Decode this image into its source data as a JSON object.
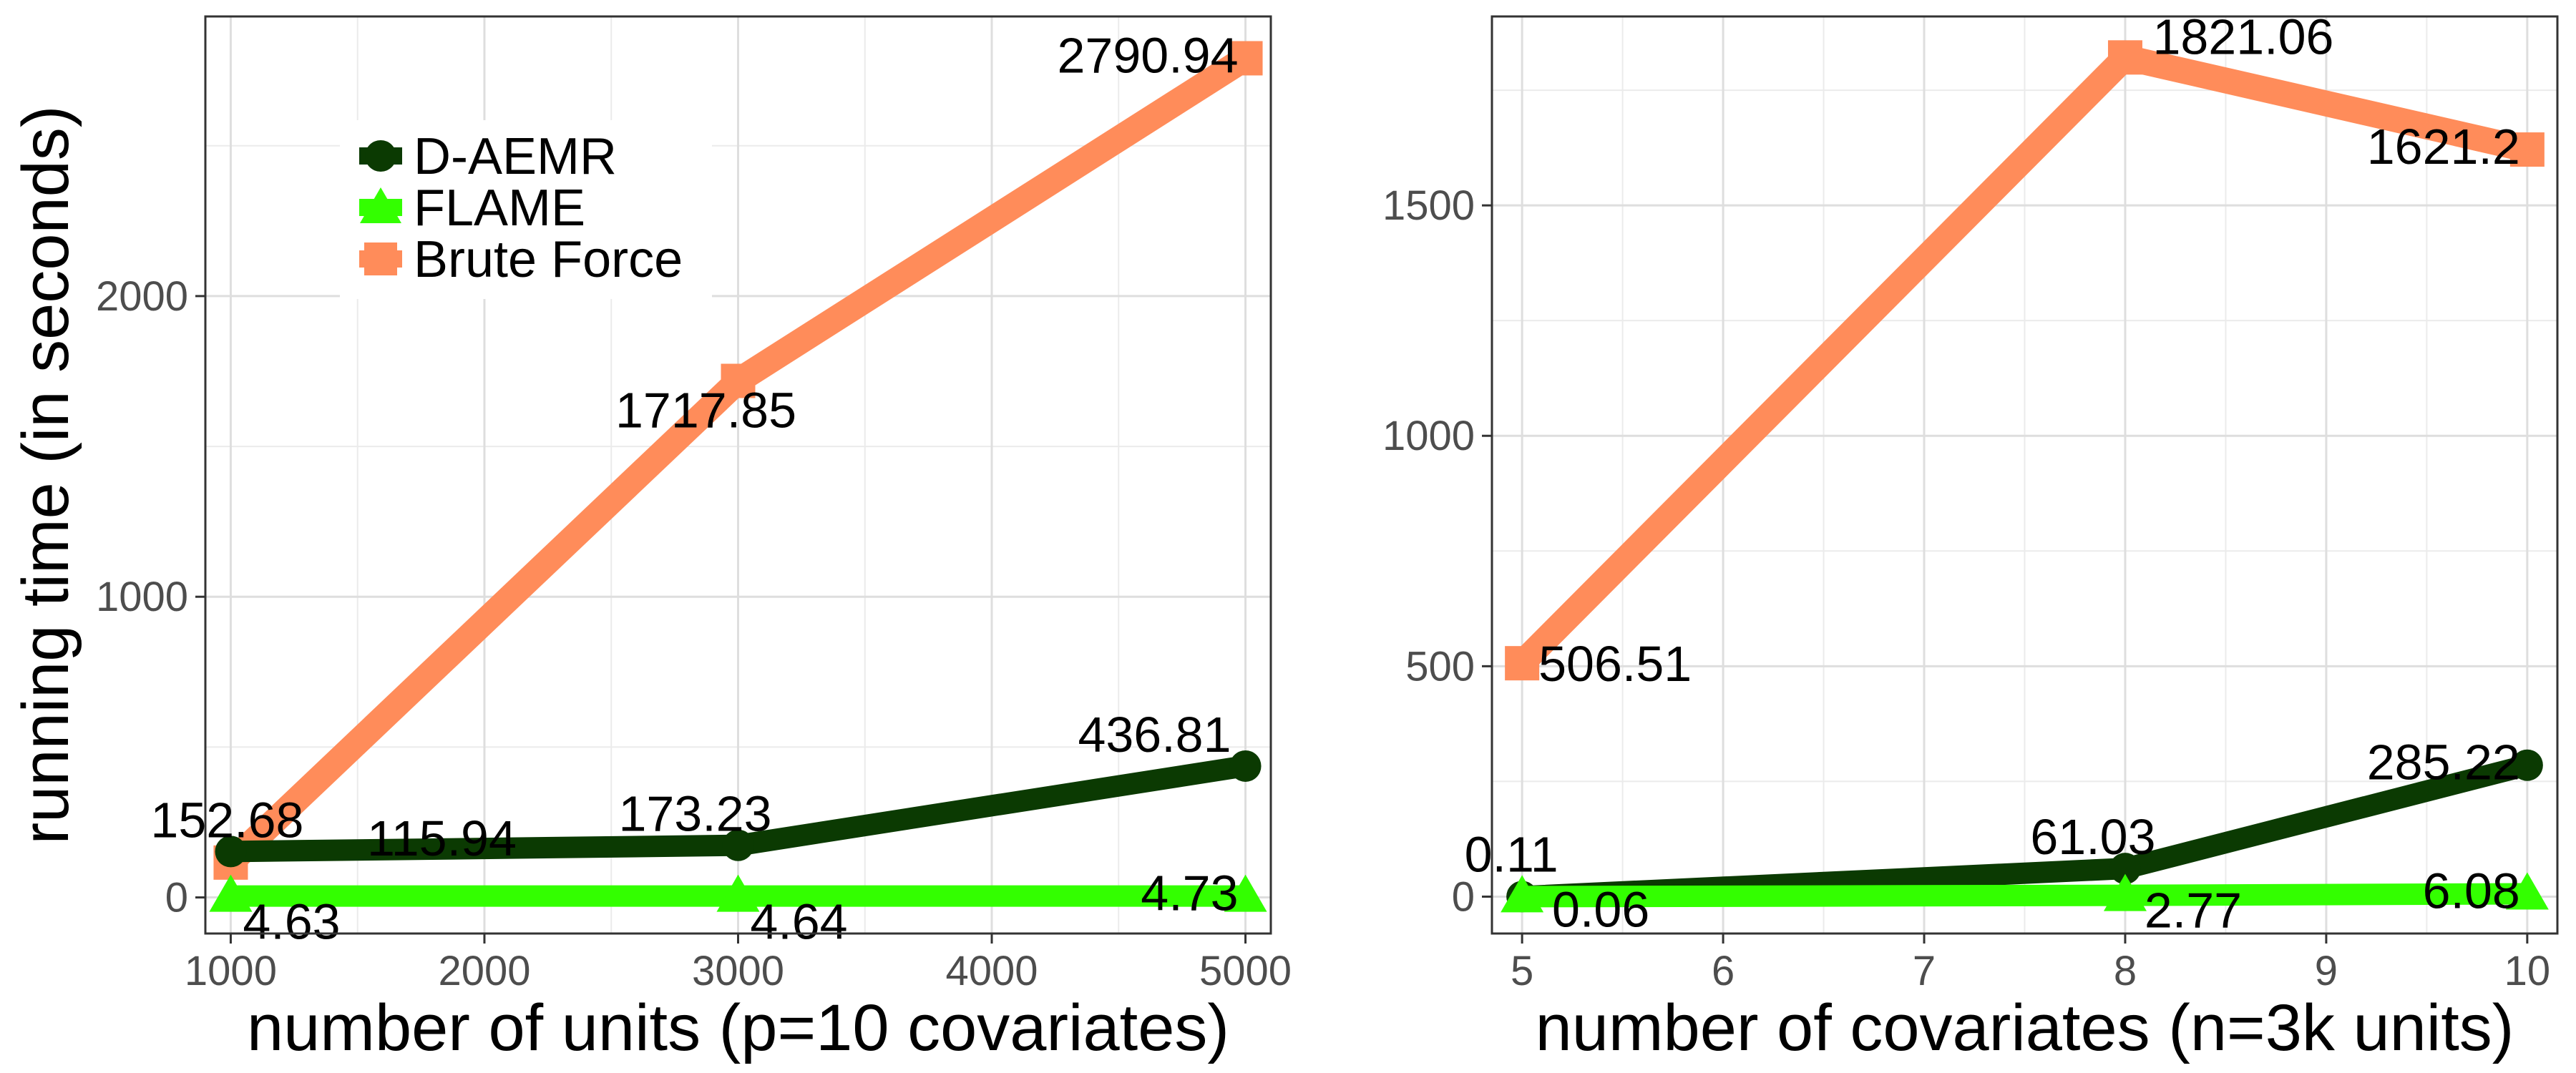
{
  "chart_data": [
    {
      "type": "line",
      "xlabel": "number of units (p=10 covariates)",
      "ylabel": "running time (in seconds)",
      "x": [
        1000,
        3000,
        5000
      ],
      "xticks": [
        "1000",
        "2000",
        "3000",
        "4000",
        "5000"
      ],
      "yticks": [
        "0",
        "1000",
        "2000"
      ],
      "xlim": [
        900,
        5100
      ],
      "ylim": [
        -120,
        2930
      ],
      "grid": true,
      "legend": "top-left",
      "series": [
        {
          "name": "D-AEMR",
          "marker": "circle",
          "color": "#0b3a02",
          "values": [
            152.68,
            173.23,
            436.81
          ],
          "labels": [
            "152.68",
            "173.23",
            "436.81"
          ]
        },
        {
          "name": "FLAME",
          "marker": "triangle",
          "color": "#33ff00",
          "values": [
            4.63,
            4.64,
            4.73
          ],
          "labels": [
            "4.63",
            "4.64",
            "4.73"
          ]
        },
        {
          "name": "Brute Force",
          "marker": "square",
          "color": "#ff8c5a",
          "values": [
            115.94,
            1717.85,
            2790.94
          ],
          "labels": [
            "115.94",
            "1717.85",
            "2790.94"
          ]
        }
      ]
    },
    {
      "type": "line",
      "xlabel": "number of covariates (n=3k units)",
      "ylabel": "",
      "x": [
        5,
        8,
        10
      ],
      "xticks": [
        "5",
        "6",
        "7",
        "8",
        "9",
        "10"
      ],
      "yticks": [
        "0",
        "500",
        "1000",
        "1500"
      ],
      "xlim": [
        4.85,
        10.15
      ],
      "ylim": [
        -80,
        1910
      ],
      "grid": true,
      "series": [
        {
          "name": "D-AEMR",
          "marker": "circle",
          "color": "#0b3a02",
          "values": [
            0.11,
            61.03,
            285.22
          ],
          "labels": [
            "0.11",
            "61.03",
            "285.22"
          ]
        },
        {
          "name": "FLAME",
          "marker": "triangle",
          "color": "#33ff00",
          "values": [
            0.06,
            2.77,
            6.08
          ],
          "labels": [
            "0.06",
            "2.77",
            "6.08"
          ]
        },
        {
          "name": "Brute Force",
          "marker": "square",
          "color": "#ff8c5a",
          "values": [
            506.51,
            1821.06,
            1621.2
          ],
          "labels": [
            "506.51",
            "1821.06",
            "1621.2"
          ]
        }
      ]
    }
  ]
}
